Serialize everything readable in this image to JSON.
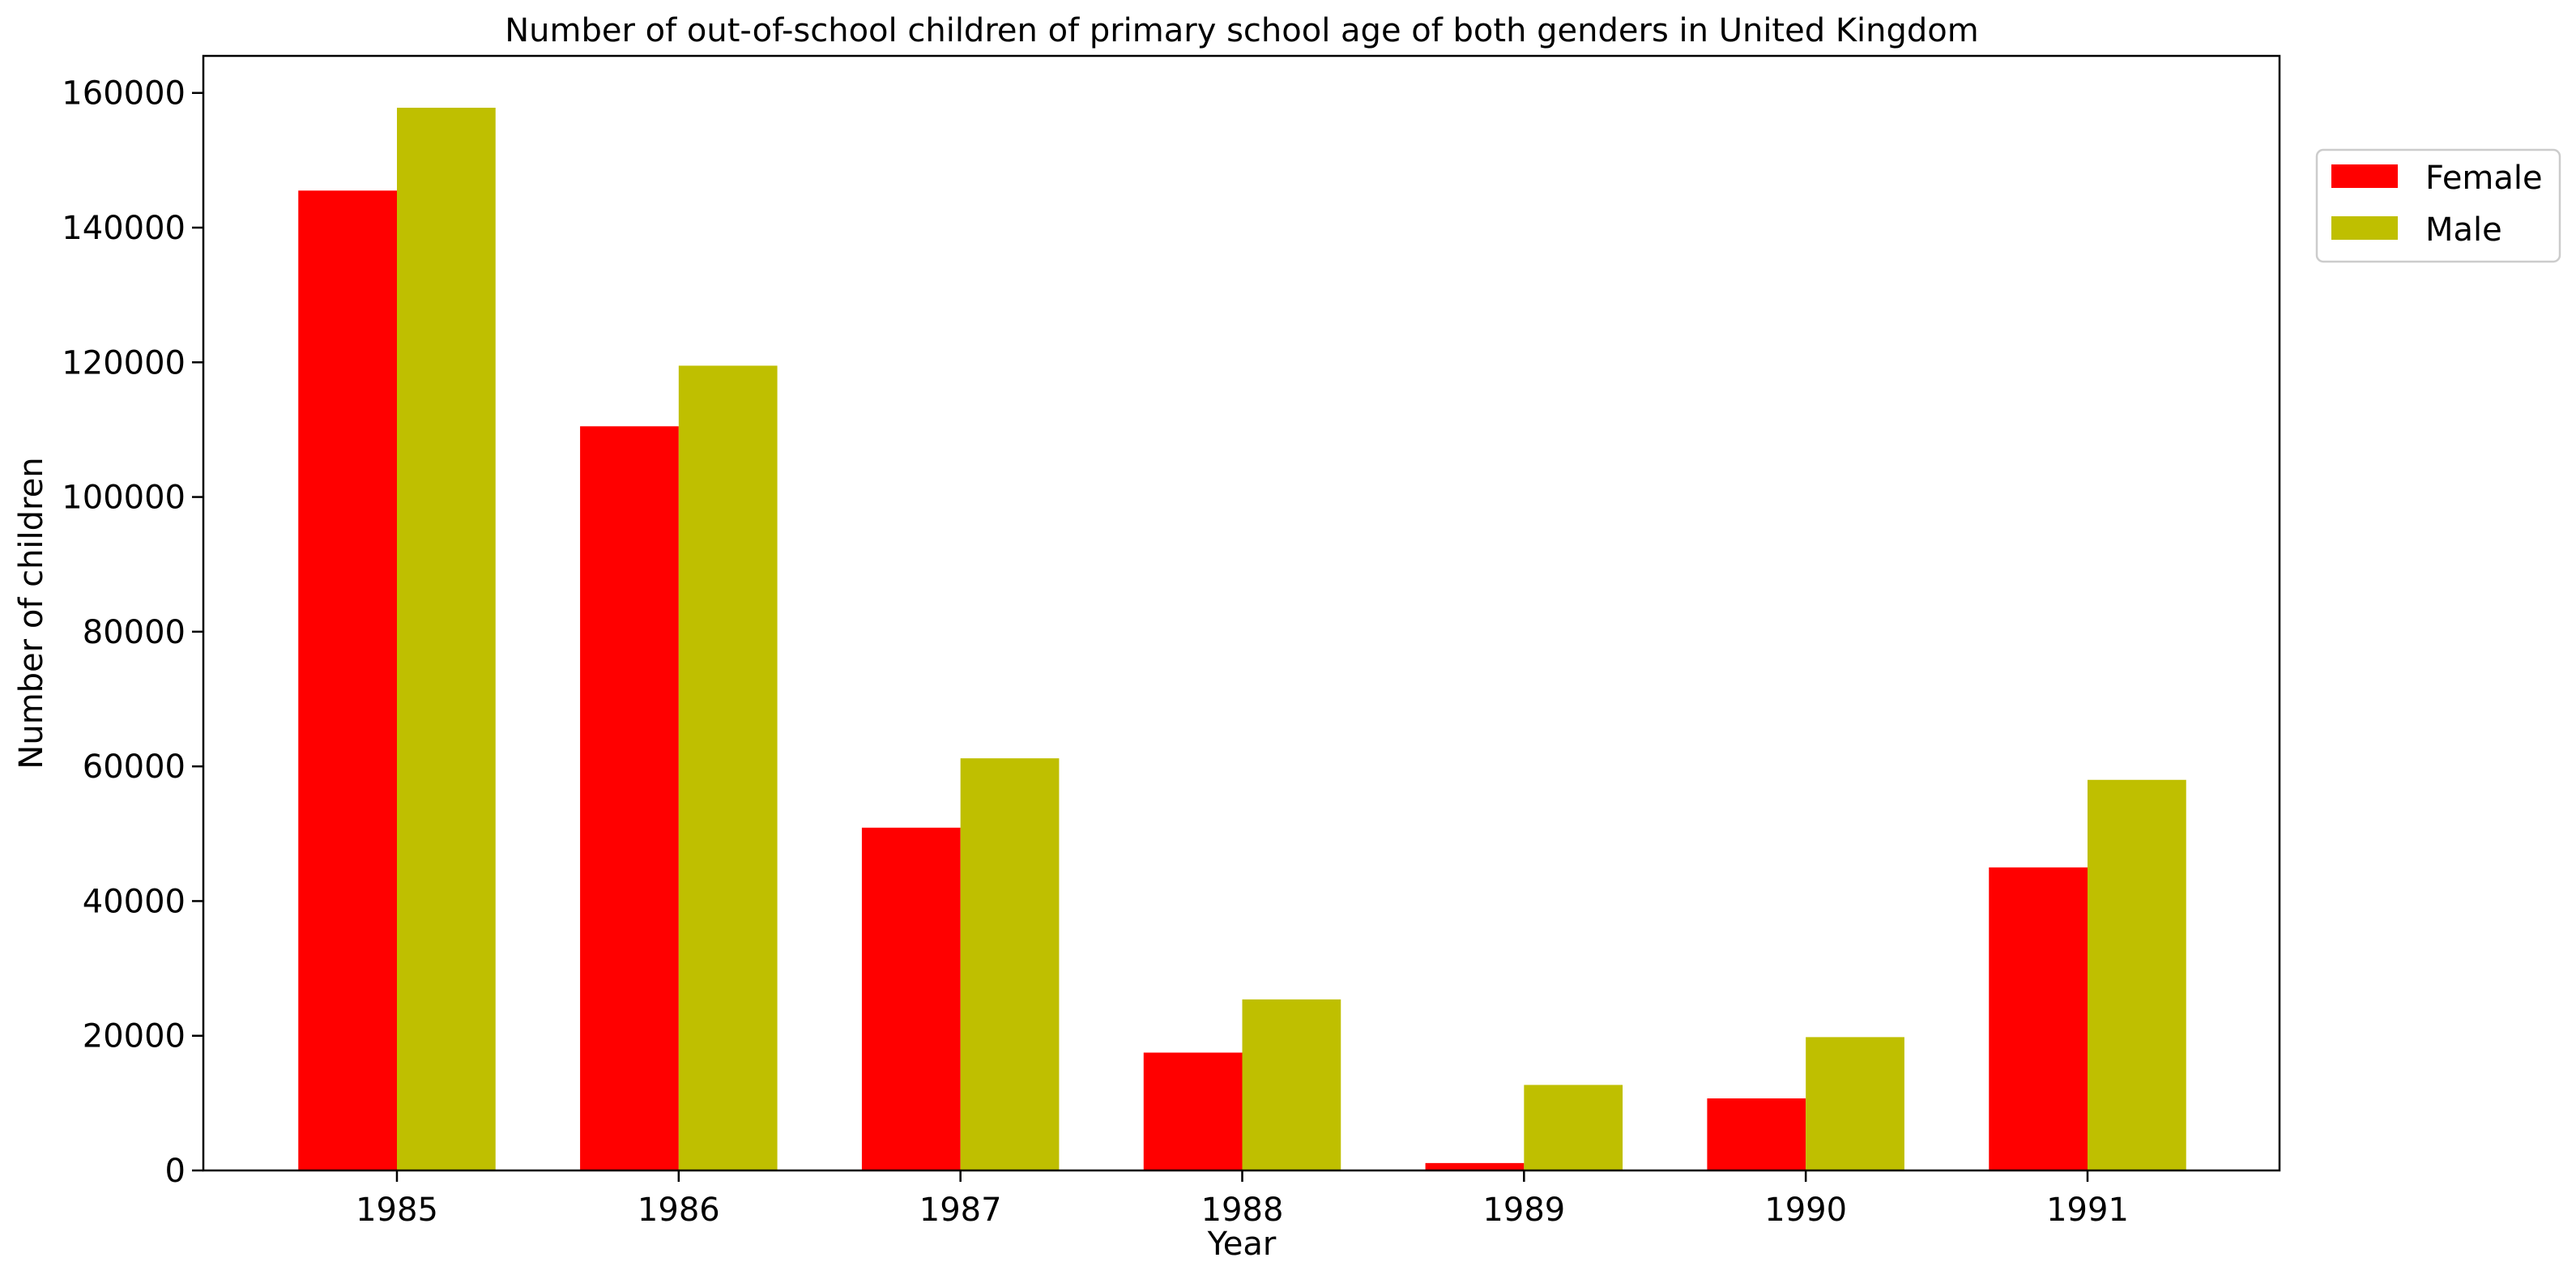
{
  "chart_data": {
    "type": "bar",
    "title": "Number of out-of-school children of primary school age of both genders in United Kingdom",
    "xlabel": "Year",
    "ylabel": "Number of children",
    "categories": [
      "1985",
      "1986",
      "1987",
      "1988",
      "1989",
      "1990",
      "1991"
    ],
    "series": [
      {
        "name": "Female",
        "color": "#ff0000",
        "values": [
          145500,
          110500,
          50900,
          17500,
          1100,
          10700,
          45000
        ]
      },
      {
        "name": "Male",
        "color": "#bfbf00",
        "values": [
          157800,
          119500,
          61200,
          25400,
          12700,
          19800,
          58000
        ]
      }
    ],
    "ylim": [
      0,
      165500
    ],
    "yticks": [
      "0",
      "20000",
      "40000",
      "60000",
      "80000",
      "100000",
      "120000",
      "140000",
      "160000"
    ],
    "grid": false,
    "legend": "top-right, outside plot"
  }
}
